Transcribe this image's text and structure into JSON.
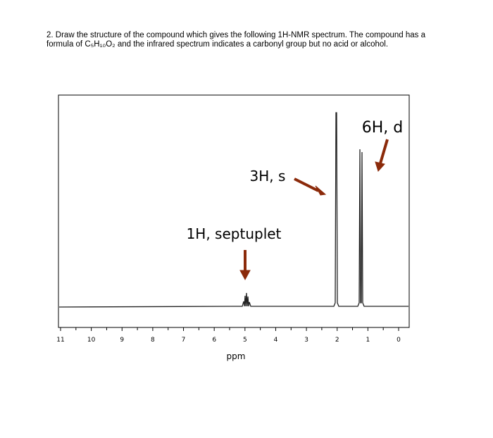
{
  "question": {
    "text": "2. Draw the structure of the compound which gives the following 1H-NMR spectrum. The compound has a formula of C₅H₁₀O₂ and the infrared spectrum indicates a carbonyl group but no acid or alcohol."
  },
  "spectrum": {
    "xlim": [
      11,
      0
    ],
    "xticks": [
      11,
      10,
      9,
      8,
      7,
      6,
      5,
      4,
      3,
      2,
      1,
      0
    ],
    "xlabel": "ppm",
    "annotations": [
      "6H, d",
      "3H, s",
      "1H, septuplet"
    ]
  }
}
